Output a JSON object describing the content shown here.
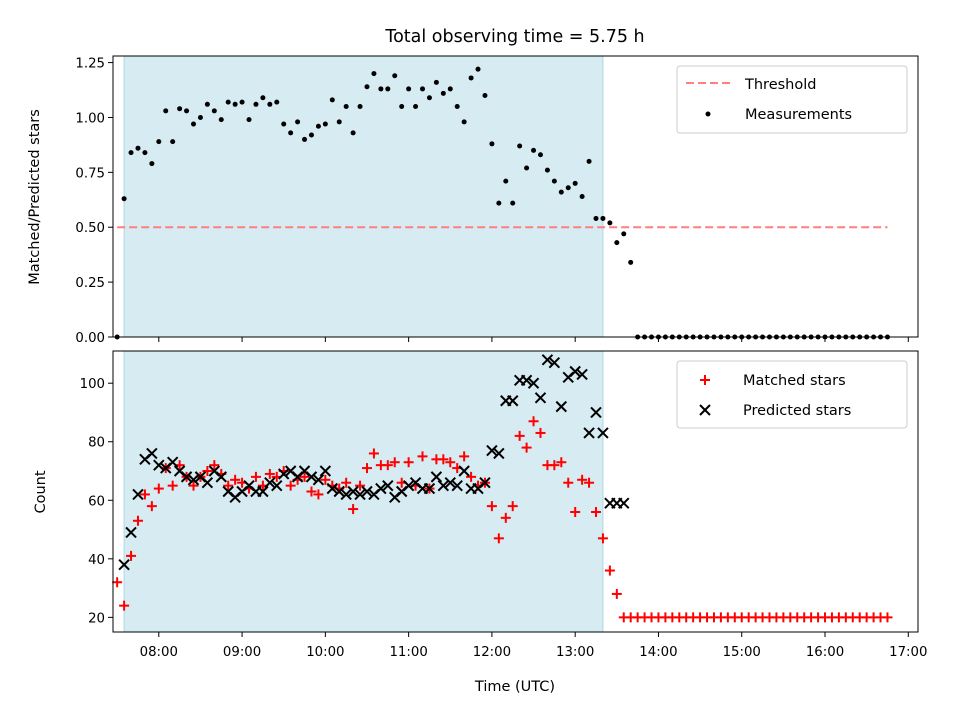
{
  "chart_data": [
    {
      "type": "scatter",
      "title": "Total observing time = 5.75 h",
      "xlabel": "",
      "ylabel": "Matched/Predicted stars",
      "ylim": [
        0,
        1.28
      ],
      "xlim": [
        "07:27",
        "17:07"
      ],
      "yticks": [
        "0.00",
        "0.25",
        "0.50",
        "0.75",
        "1.00",
        "1.25"
      ],
      "shaded_region": [
        "07:35",
        "13:20"
      ],
      "shaded_color": "#add8e6",
      "legend": {
        "position": "top-right",
        "entries": [
          "Threshold",
          "Measurements"
        ]
      },
      "series": [
        {
          "name": "Threshold",
          "style": "dashed-line",
          "color": "#ff7f7f",
          "x": [
            "07:30",
            "16:45"
          ],
          "y": [
            0.5,
            0.5
          ]
        },
        {
          "name": "Measurements",
          "style": "dot",
          "color": "#000000",
          "x": [
            "07:30",
            "07:35",
            "07:40",
            "07:45",
            "07:50",
            "07:55",
            "08:00",
            "08:05",
            "08:10",
            "08:15",
            "08:20",
            "08:25",
            "08:30",
            "08:35",
            "08:40",
            "08:45",
            "08:50",
            "08:55",
            "09:00",
            "09:05",
            "09:10",
            "09:15",
            "09:20",
            "09:25",
            "09:30",
            "09:35",
            "09:40",
            "09:45",
            "09:50",
            "09:55",
            "10:00",
            "10:05",
            "10:10",
            "10:15",
            "10:20",
            "10:25",
            "10:30",
            "10:35",
            "10:40",
            "10:45",
            "10:50",
            "10:55",
            "11:00",
            "11:05",
            "11:10",
            "11:15",
            "11:20",
            "11:25",
            "11:30",
            "11:35",
            "11:40",
            "11:45",
            "11:50",
            "11:55",
            "12:00",
            "12:05",
            "12:10",
            "12:15",
            "12:20",
            "12:25",
            "12:30",
            "12:35",
            "12:40",
            "12:45",
            "12:50",
            "12:55",
            "13:00",
            "13:05",
            "13:10",
            "13:15",
            "13:20",
            "13:25",
            "13:30",
            "13:35",
            "13:40",
            "13:45",
            "13:50",
            "13:55",
            "14:00",
            "14:05",
            "14:10",
            "14:15",
            "14:20",
            "14:25",
            "14:30",
            "14:35",
            "14:40",
            "14:45",
            "14:50",
            "14:55",
            "15:00",
            "15:05",
            "15:10",
            "15:15",
            "15:20",
            "15:25",
            "15:30",
            "15:35",
            "15:40",
            "15:45",
            "15:50",
            "15:55",
            "16:00",
            "16:05",
            "16:10",
            "16:15",
            "16:20",
            "16:25",
            "16:30",
            "16:35",
            "16:40",
            "16:45"
          ],
          "y": [
            0.0,
            0.63,
            0.84,
            0.86,
            0.84,
            0.79,
            0.89,
            1.03,
            0.89,
            1.04,
            1.03,
            0.97,
            1.0,
            1.06,
            1.03,
            0.99,
            1.07,
            1.06,
            1.07,
            0.99,
            1.06,
            1.09,
            1.06,
            1.07,
            0.97,
            0.93,
            0.98,
            0.9,
            0.92,
            0.96,
            0.97,
            1.08,
            0.98,
            1.05,
            0.93,
            1.05,
            1.14,
            1.2,
            1.13,
            1.13,
            1.19,
            1.05,
            1.13,
            1.05,
            1.13,
            1.09,
            1.16,
            1.11,
            1.13,
            1.05,
            0.98,
            1.18,
            1.22,
            1.1,
            0.88,
            0.61,
            0.71,
            0.61,
            0.87,
            0.77,
            0.85,
            0.83,
            0.76,
            0.71,
            0.66,
            0.68,
            0.7,
            0.64,
            0.8,
            0.54,
            0.54,
            0.52,
            0.43,
            0.47,
            0.34,
            0.0,
            0.0,
            0.0,
            0.0,
            0.0,
            0.0,
            0.0,
            0.0,
            0.0,
            0.0,
            0.0,
            0.0,
            0.0,
            0.0,
            0.0,
            0.0,
            0.0,
            0.0,
            0.0,
            0.0,
            0.0,
            0.0,
            0.0,
            0.0,
            0.0,
            0.0,
            0.0,
            0.0,
            0.0,
            0.0,
            0.0,
            0.0,
            0.0,
            0.0,
            0.0,
            0.0,
            0.0
          ]
        }
      ]
    },
    {
      "type": "scatter",
      "title": "",
      "xlabel": "Time (UTC)",
      "ylabel": "Count",
      "ylim": [
        15,
        111
      ],
      "xlim": [
        "07:27",
        "17:07"
      ],
      "yticks": [
        "20",
        "40",
        "60",
        "80",
        "100"
      ],
      "xticks": [
        "08:00",
        "09:00",
        "10:00",
        "11:00",
        "12:00",
        "13:00",
        "14:00",
        "15:00",
        "16:00",
        "17:00"
      ],
      "shaded_region": [
        "07:35",
        "13:20"
      ],
      "shaded_color": "#add8e6",
      "legend": {
        "position": "top-right",
        "entries": [
          "Matched stars",
          "Predicted stars"
        ]
      },
      "series": [
        {
          "name": "Matched stars",
          "marker": "plus",
          "color": "#ff0000",
          "x": [
            "07:30",
            "07:35",
            "07:40",
            "07:45",
            "07:50",
            "07:55",
            "08:00",
            "08:05",
            "08:10",
            "08:15",
            "08:20",
            "08:25",
            "08:30",
            "08:35",
            "08:40",
            "08:45",
            "08:50",
            "08:55",
            "09:00",
            "09:05",
            "09:10",
            "09:15",
            "09:20",
            "09:25",
            "09:30",
            "09:35",
            "09:40",
            "09:45",
            "09:50",
            "09:55",
            "10:00",
            "10:05",
            "10:10",
            "10:15",
            "10:20",
            "10:25",
            "10:30",
            "10:35",
            "10:40",
            "10:45",
            "10:50",
            "10:55",
            "11:00",
            "11:05",
            "11:10",
            "11:15",
            "11:20",
            "11:25",
            "11:30",
            "11:35",
            "11:40",
            "11:45",
            "11:50",
            "11:55",
            "12:00",
            "12:05",
            "12:10",
            "12:15",
            "12:20",
            "12:25",
            "12:30",
            "12:35",
            "12:40",
            "12:45",
            "12:50",
            "12:55",
            "13:00",
            "13:05",
            "13:10",
            "13:15",
            "13:20",
            "13:25",
            "13:30",
            "13:35",
            "13:40",
            "13:45",
            "13:50",
            "13:55",
            "14:00",
            "14:05",
            "14:10",
            "14:15",
            "14:20",
            "14:25",
            "14:30",
            "14:35",
            "14:40",
            "14:45",
            "14:50",
            "14:55",
            "15:00",
            "15:05",
            "15:10",
            "15:15",
            "15:20",
            "15:25",
            "15:30",
            "15:35",
            "15:40",
            "15:45",
            "15:50",
            "15:55",
            "16:00",
            "16:05",
            "16:10",
            "16:15",
            "16:20",
            "16:25",
            "16:30",
            "16:35",
            "16:40",
            "16:45"
          ],
          "y": [
            32,
            24,
            41,
            53,
            62,
            58,
            64,
            71,
            65,
            72,
            68,
            65,
            68,
            70,
            72,
            69,
            65,
            67,
            66,
            64,
            68,
            65,
            69,
            68,
            70,
            65,
            67,
            68,
            63,
            62,
            67,
            65,
            64,
            66,
            57,
            65,
            71,
            76,
            72,
            72,
            73,
            66,
            73,
            65,
            75,
            64,
            74,
            74,
            73,
            71,
            75,
            68,
            65,
            66,
            58,
            47,
            54,
            58,
            82,
            78,
            87,
            83,
            72,
            72,
            73,
            66,
            56,
            67,
            66,
            56,
            47,
            36,
            28,
            20,
            20,
            20,
            20,
            20,
            20,
            20,
            20,
            20,
            20,
            20,
            20,
            20,
            20,
            20,
            20,
            20,
            20,
            20,
            20,
            20,
            20,
            20,
            20,
            20,
            20,
            20,
            20,
            20,
            20,
            20,
            20,
            20,
            20,
            20,
            20,
            20,
            20,
            20
          ]
        },
        {
          "name": "Predicted stars",
          "marker": "x",
          "color": "#000000",
          "x": [
            "07:35",
            "07:40",
            "07:45",
            "07:50",
            "07:55",
            "08:00",
            "08:05",
            "08:10",
            "08:15",
            "08:20",
            "08:25",
            "08:30",
            "08:35",
            "08:40",
            "08:45",
            "08:50",
            "08:55",
            "09:00",
            "09:05",
            "09:10",
            "09:15",
            "09:20",
            "09:25",
            "09:30",
            "09:35",
            "09:40",
            "09:45",
            "09:50",
            "09:55",
            "10:00",
            "10:05",
            "10:10",
            "10:15",
            "10:20",
            "10:25",
            "10:30",
            "10:35",
            "10:40",
            "10:45",
            "10:50",
            "10:55",
            "11:00",
            "11:05",
            "11:10",
            "11:15",
            "11:20",
            "11:25",
            "11:30",
            "11:35",
            "11:40",
            "11:45",
            "11:50",
            "11:55",
            "12:00",
            "12:05",
            "12:10",
            "12:15",
            "12:20",
            "12:25",
            "12:30",
            "12:35",
            "12:40",
            "12:45",
            "12:50",
            "12:55",
            "13:00",
            "13:05",
            "13:10",
            "13:15",
            "13:20",
            "13:25",
            "13:30",
            "13:35"
          ],
          "y": [
            38,
            49,
            62,
            74,
            76,
            72,
            71,
            73,
            70,
            68,
            67,
            68,
            66,
            70,
            68,
            63,
            61,
            63,
            65,
            63,
            63,
            66,
            65,
            69,
            70,
            68,
            70,
            68,
            67,
            70,
            64,
            63,
            62,
            63,
            62,
            63,
            62,
            64,
            65,
            61,
            63,
            65,
            66,
            64,
            64,
            68,
            65,
            66,
            65,
            70,
            64,
            64,
            66,
            77,
            76,
            94,
            94,
            101,
            101,
            100,
            95,
            108,
            107,
            92,
            102,
            104,
            103,
            83,
            90,
            83,
            59,
            59,
            59
          ]
        }
      ]
    }
  ]
}
